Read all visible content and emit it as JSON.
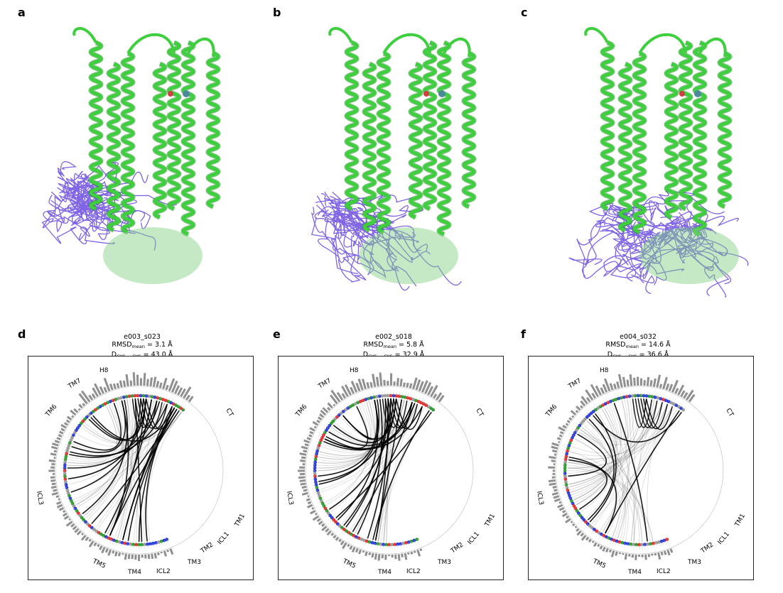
{
  "panels_top": [
    {
      "letter": "a"
    },
    {
      "letter": "b"
    },
    {
      "letter": "c"
    }
  ],
  "panels_bottom": [
    {
      "letter": "d",
      "id": "e003_s023",
      "rmsd_label": "RMSD",
      "rmsd_sub": "mean",
      "rmsd_value": " = 3.1 Å",
      "d_label": "D",
      "d_sub": "CYS − CYS",
      "d_value": " = 43.0 Å"
    },
    {
      "letter": "e",
      "id": "e002_s018",
      "rmsd_label": "RMSD",
      "rmsd_sub": "mean",
      "rmsd_value": " = 5.8 Å",
      "d_label": "D",
      "d_sub": "CYS − CYS",
      "d_value": " = 32.9 Å"
    },
    {
      "letter": "f",
      "id": "e004_s032",
      "rmsd_label": "RMSD",
      "rmsd_sub": "mean",
      "rmsd_value": " = 14.6 Å",
      "d_label": "D",
      "d_sub": "CYS − CYS",
      "d_value": " = 36.6 Å"
    }
  ],
  "region_labels": [
    "H8",
    "TM7",
    "TM6",
    "ICL3",
    "TM5",
    "TM4",
    "ICL2",
    "TM3",
    "TM2",
    "ICL1",
    "TM1",
    "CT"
  ],
  "colors": {
    "helix_green": "#3ecf3e",
    "helix_dark": "#1f8f1f",
    "loop_purple": "#6a4be0",
    "node_red": "#e03030",
    "node_blue": "#2a3bd8",
    "node_green": "#2e9a2e",
    "node_gray": "#9a9a9a",
    "edge": "#000000"
  }
}
